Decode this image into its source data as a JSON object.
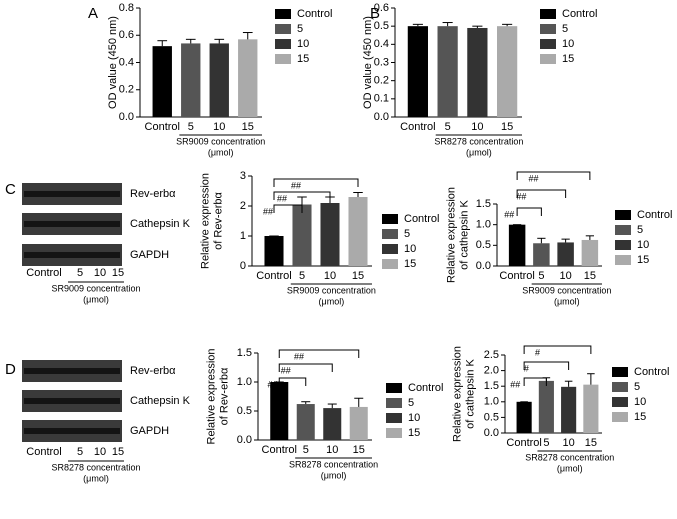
{
  "chart_data": [
    {
      "type": "bar",
      "panel": "A",
      "y_label": [
        "OD value (450 nm)"
      ],
      "x_label": [
        "SR9009 concentration",
        "(μmol)"
      ],
      "categories": [
        "Control",
        "5",
        "10",
        "15"
      ],
      "values": [
        0.52,
        0.54,
        0.54,
        0.57
      ],
      "errors": [
        0.04,
        0.03,
        0.03,
        0.05
      ],
      "colors": [
        "#000000",
        "#555555",
        "#333333",
        "#aaaaaa"
      ],
      "ylim": [
        0,
        0.8
      ],
      "yticks": [
        {
          "value": 0,
          "label": "0.0"
        },
        0.2,
        0.4,
        0.6,
        0.8
      ],
      "annotations": []
    },
    {
      "type": "bar",
      "panel": "B",
      "y_label": [
        "OD value (450 nm)"
      ],
      "x_label": [
        "SR8278 concentration",
        "(μmol)"
      ],
      "categories": [
        "Control",
        "5",
        "10",
        "15"
      ],
      "values": [
        0.5,
        0.5,
        0.49,
        0.5
      ],
      "errors": [
        0.01,
        0.02,
        0.01,
        0.01
      ],
      "colors": [
        "#000000",
        "#555555",
        "#333333",
        "#aaaaaa"
      ],
      "ylim": [
        0,
        0.6
      ],
      "yticks": [
        {
          "value": 0,
          "label": "0.0"
        },
        0.1,
        0.2,
        0.3,
        0.4,
        0.5,
        0.6
      ],
      "annotations": []
    },
    {
      "type": "bar",
      "y_label": [
        "Relative expression",
        "of Rev-erbα"
      ],
      "x_label": [
        "SR9009 concentration",
        "(μmol)"
      ],
      "categories": [
        "Control",
        "5",
        "10",
        "15"
      ],
      "values": [
        1.0,
        2.05,
        2.1,
        2.3
      ],
      "errors": [
        0,
        0.25,
        0.2,
        0.15
      ],
      "colors": [
        "#000000",
        "#555555",
        "#333333",
        "#aaaaaa"
      ],
      "ylim": [
        0,
        3
      ],
      "yticks": [
        0,
        1,
        2,
        3
      ],
      "annotations": [
        {
          "text": "##",
          "between": [
            "Control",
            "5"
          ]
        },
        {
          "text": "##",
          "between": [
            "Control",
            "10"
          ]
        },
        {
          "text": "##",
          "between": [
            "Control",
            "15"
          ]
        }
      ]
    },
    {
      "type": "bar",
      "y_label": [
        "Relative expression",
        "of cathepsin K"
      ],
      "x_label": [
        "SR9009 concentration",
        "(μmol)"
      ],
      "categories": [
        "Control",
        "5",
        "10",
        "15"
      ],
      "values": [
        1.0,
        0.55,
        0.57,
        0.63
      ],
      "errors": [
        0,
        0.12,
        0.08,
        0.1
      ],
      "colors": [
        "#000000",
        "#555555",
        "#333333",
        "#aaaaaa"
      ],
      "ylim": [
        0,
        1.5
      ],
      "yticks": [
        {
          "value": 0,
          "label": "0.0"
        },
        0.5,
        {
          "value": 1,
          "label": "1.0"
        },
        1.5
      ],
      "annotations": [
        {
          "text": "##",
          "between": [
            "Control",
            "5"
          ]
        },
        {
          "text": "##",
          "between": [
            "Control",
            "10"
          ]
        },
        {
          "text": "##",
          "between": [
            "Control",
            "15"
          ]
        }
      ]
    },
    {
      "type": "bar",
      "y_label": [
        "Relative expression",
        "of Rev-erbα"
      ],
      "x_label": [
        "SR8278 concentration",
        "(μmol)"
      ],
      "categories": [
        "Control",
        "5",
        "10",
        "15"
      ],
      "values": [
        1.0,
        0.62,
        0.55,
        0.57
      ],
      "errors": [
        0,
        0.04,
        0.07,
        0.15
      ],
      "colors": [
        "#000000",
        "#555555",
        "#333333",
        "#aaaaaa"
      ],
      "ylim": [
        0,
        1.5
      ],
      "yticks": [
        {
          "value": 0,
          "label": "0.0"
        },
        0.5,
        {
          "value": 1,
          "label": "1.0"
        },
        1.5
      ],
      "annotations": [
        {
          "text": "##",
          "between": [
            "Control",
            "5"
          ]
        },
        {
          "text": "##",
          "between": [
            "Control",
            "10"
          ]
        },
        {
          "text": "##",
          "between": [
            "Control",
            "15"
          ]
        }
      ]
    },
    {
      "type": "bar",
      "y_label": [
        "Relative expression",
        "of cathepsin K"
      ],
      "x_label": [
        "SR8278 concentration",
        "(μmol)"
      ],
      "categories": [
        "Control",
        "5",
        "10",
        "15"
      ],
      "values": [
        1.0,
        1.67,
        1.48,
        1.55
      ],
      "errors": [
        0,
        0.1,
        0.18,
        0.35
      ],
      "colors": [
        "#000000",
        "#555555",
        "#333333",
        "#aaaaaa"
      ],
      "ylim": [
        0,
        2.5
      ],
      "yticks": [
        {
          "value": 0,
          "label": "0.0"
        },
        0.5,
        {
          "value": 1,
          "label": "1.0"
        },
        1.5,
        {
          "value": 2,
          "label": "2.0"
        },
        2.5
      ],
      "annotations": [
        {
          "text": "##",
          "between": [
            "Control",
            "5"
          ]
        },
        {
          "text": "#",
          "between": [
            "Control",
            "10"
          ]
        },
        {
          "text": "#",
          "between": [
            "Control",
            "15"
          ]
        }
      ]
    }
  ],
  "blots": [
    {
      "panel": "C",
      "rows": [
        "Rev-erbα",
        "Cathepsin K",
        "GAPDH"
      ],
      "lanes": [
        "Control",
        "5",
        "10",
        "15"
      ],
      "x_label": [
        "SR9009 concentration",
        "(μmol)"
      ]
    },
    {
      "panel": "D",
      "rows": [
        "Rev-erbα",
        "Cathepsin K",
        "GAPDH"
      ],
      "lanes": [
        "Control",
        "5",
        "10",
        "15"
      ],
      "x_label": [
        "SR8278 concentration",
        "(μmol)"
      ]
    }
  ]
}
